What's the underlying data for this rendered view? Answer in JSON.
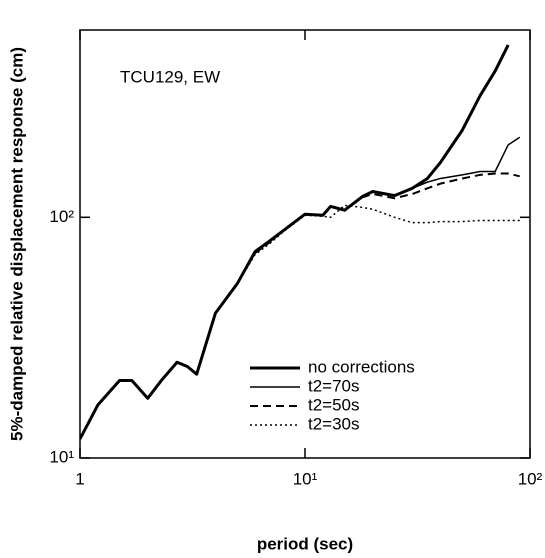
{
  "chart_data": {
    "type": "line",
    "annotation": "TCU129, EW",
    "xlabel": "period (sec)",
    "ylabel": "5%-damped relative displacement response (cm)",
    "xscale": "log",
    "yscale": "log",
    "xlim": [
      1,
      100
    ],
    "ylim": [
      10,
      600
    ],
    "xticks": [
      1,
      {
        "value": 10,
        "label": "10¹"
      },
      {
        "value": 100,
        "label": "10²"
      }
    ],
    "yticks": [
      {
        "value": 10,
        "label": "10¹"
      },
      {
        "value": 100,
        "label": "10²"
      }
    ],
    "legend": "lower right",
    "x": [
      1,
      1.2,
      1.5,
      1.7,
      2,
      2.3,
      2.7,
      3,
      3.3,
      4,
      5,
      6,
      7,
      8,
      10,
      12,
      13,
      15,
      18,
      20,
      25,
      30,
      35,
      40,
      50,
      60,
      70,
      80,
      90
    ],
    "series": [
      {
        "name": "no corrections",
        "color": "#000000",
        "width": 3,
        "dash": "none",
        "values": [
          12,
          16.6,
          21,
          21,
          17.7,
          21,
          25,
          24,
          22.3,
          40,
          53,
          72,
          80,
          88,
          103,
          102,
          111,
          107,
          122,
          128,
          123,
          132,
          145,
          169,
          230,
          320,
          405,
          520,
          null
        ]
      },
      {
        "name": "t2=70s",
        "color": "#000000",
        "width": 1.5,
        "dash": "none",
        "values": [
          12,
          16.6,
          21,
          21,
          17.7,
          21,
          25,
          24,
          22.3,
          40,
          53,
          72,
          80,
          88,
          103,
          102,
          111,
          107,
          122,
          128,
          123,
          132,
          140,
          145,
          150,
          155,
          155,
          200,
          215
        ]
      },
      {
        "name": "t2=50s",
        "color": "#000000",
        "width": 2,
        "dash": "8 5",
        "values": [
          12,
          16.6,
          21,
          21,
          17.7,
          21,
          25,
          24,
          22.3,
          40,
          53,
          71,
          79,
          88,
          103,
          102,
          111,
          107,
          121,
          125,
          120,
          125,
          132,
          138,
          145,
          150,
          152,
          152,
          148
        ]
      },
      {
        "name": "t2=30s",
        "color": "#000000",
        "width": 1.5,
        "dash": "2 3",
        "values": [
          12,
          16.6,
          21,
          21,
          17.7,
          21,
          25,
          24,
          22.3,
          40,
          53,
          70,
          78,
          87,
          102,
          101,
          100,
          112,
          110,
          108,
          100,
          95,
          95,
          96,
          96,
          97,
          97,
          97,
          97
        ]
      }
    ]
  }
}
